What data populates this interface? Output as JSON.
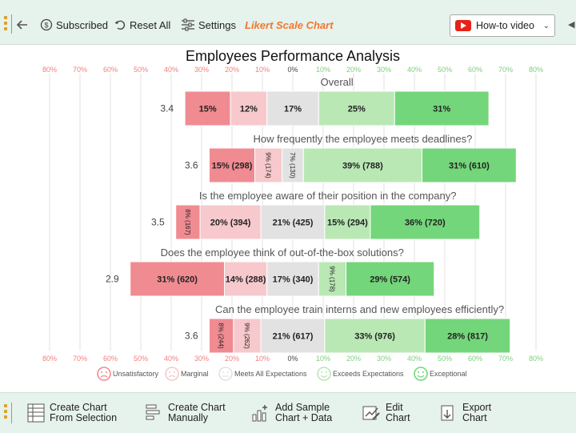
{
  "toolbar": {
    "subscribed": "Subscribed",
    "reset_all": "Reset All",
    "settings": "Settings",
    "app_title": "Likert Scale Chart",
    "how_to": "How-to video"
  },
  "bottom": {
    "create_selection_1": "Create Chart",
    "create_selection_2": "From Selection",
    "create_manual_1": "Create Chart",
    "create_manual_2": "Manually",
    "sample_1": "Add Sample",
    "sample_2": "Chart + Data",
    "edit_1": "Edit",
    "edit_2": "Chart",
    "export_1": "Export",
    "export_2": "Chart"
  },
  "colors": {
    "unsatisfactory": "#f08b91",
    "marginal": "#f7c9cc",
    "meets": "#e2e2e2",
    "exceeds": "#b9e8b5",
    "exceptional": "#74d67a",
    "neg_axis": "#f07f7f",
    "pos_axis": "#7ccf7c"
  },
  "chart_data": {
    "type": "bar",
    "subtype": "diverging-stacked",
    "title": "Employees Performance Analysis",
    "axis_ticks_left": [
      "80%",
      "70%",
      "60%",
      "50%",
      "40%",
      "30%",
      "20%",
      "10%"
    ],
    "axis_tick_zero": "0%",
    "axis_ticks_right": [
      "10%",
      "20%",
      "30%",
      "40%",
      "50%",
      "60%",
      "70%",
      "80%"
    ],
    "categories_legend": [
      "Unsatisfactory",
      "Marginal",
      "Meets All Expectations",
      "Exceeds Expectations",
      "Exceptional"
    ],
    "rows": [
      {
        "question": "Overall",
        "score": "3.4",
        "values": [
          15,
          12,
          17,
          25,
          31
        ],
        "labels": [
          "15%",
          "12%",
          "17%",
          "25%",
          "31%"
        ]
      },
      {
        "question": "How frequently the employee meets deadlines?",
        "score": "3.6",
        "values": [
          15,
          9,
          7,
          39,
          31
        ],
        "labels": [
          "15% (298)",
          "9% (174)",
          "7% (130)",
          "39% (788)",
          "31% (610)"
        ]
      },
      {
        "question": "Is the employee aware of their position in the company?",
        "score": "3.5",
        "values": [
          8,
          20,
          21,
          15,
          36
        ],
        "labels": [
          "8% (167)",
          "20% (394)",
          "21% (425)",
          "15% (294)",
          "36% (720)"
        ]
      },
      {
        "question": "Does the employee think of out-of-the-box solutions?",
        "score": "2.9",
        "values": [
          31,
          14,
          17,
          9,
          29
        ],
        "labels": [
          "31% (620)",
          "14% (288)",
          "17% (340)",
          "9% (178)",
          "29% (574)"
        ]
      },
      {
        "question": "Can the employee train interns and new employees efficiently?",
        "score": "3.6",
        "values": [
          8,
          9,
          21,
          33,
          28
        ],
        "labels": [
          "8% (244)",
          "9% (262)",
          "21% (617)",
          "33% (976)",
          "28% (817)"
        ]
      }
    ]
  }
}
